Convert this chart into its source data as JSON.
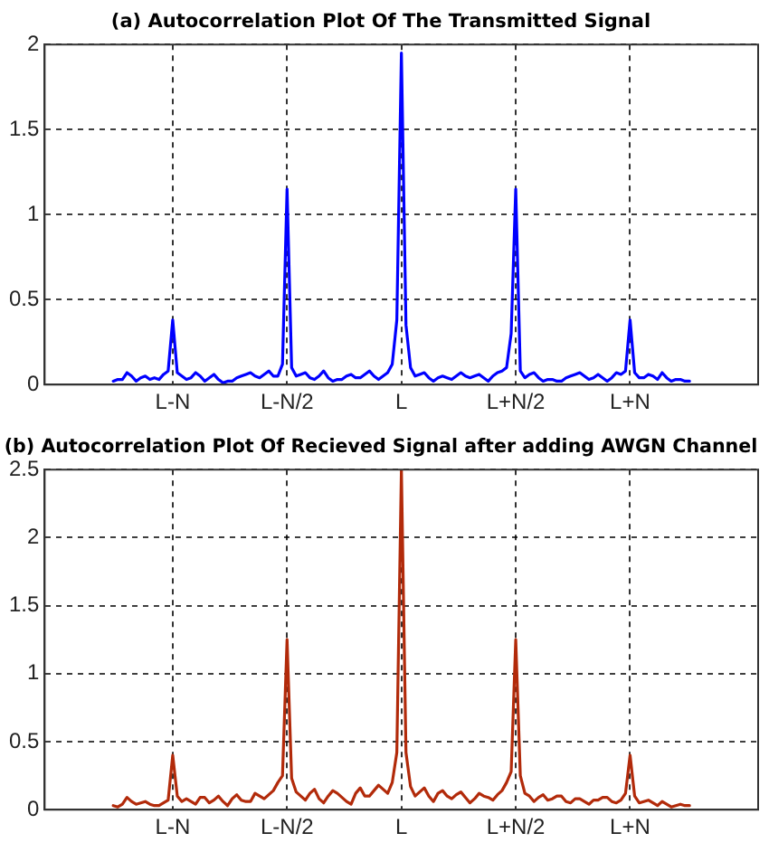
{
  "chart_data": [
    {
      "type": "line",
      "title": "(a) Autocorrelation Plot Of The Transmitted Signal",
      "ylim": [
        0,
        2
      ],
      "yticks": [
        0,
        0.5,
        1,
        1.5,
        2
      ],
      "grid": true,
      "marker": "none",
      "line_style": "solid",
      "categories": [
        null,
        null,
        null,
        null,
        null,
        null,
        null,
        null,
        null,
        null,
        null,
        null,
        null,
        null,
        null,
        null,
        null,
        null,
        null,
        null,
        null,
        null,
        null,
        null,
        null,
        null,
        null,
        null,
        "L-N",
        null,
        null,
        null,
        null,
        null,
        null,
        null,
        null,
        null,
        null,
        null,
        null,
        null,
        null,
        null,
        null,
        null,
        null,
        null,
        null,
        null,
        null,
        null,
        null,
        "L-N/2",
        null,
        null,
        null,
        null,
        null,
        null,
        null,
        null,
        null,
        null,
        null,
        null,
        null,
        null,
        null,
        null,
        null,
        null,
        null,
        null,
        null,
        null,
        null,
        null,
        "L",
        null,
        null,
        null,
        null,
        null,
        null,
        null,
        null,
        null,
        null,
        null,
        null,
        null,
        null,
        null,
        null,
        null,
        null,
        null,
        null,
        null,
        null,
        null,
        null,
        "L+N/2",
        null,
        null,
        null,
        null,
        null,
        null,
        null,
        null,
        null,
        null,
        null,
        null,
        null,
        null,
        null,
        null,
        null,
        null,
        null,
        null,
        null,
        null,
        null,
        null,
        "L+N",
        null,
        null,
        null,
        null,
        null,
        null,
        null,
        null,
        null,
        null,
        null,
        null,
        null,
        null,
        null,
        null,
        null,
        null,
        null,
        null,
        null,
        null,
        null,
        null,
        null,
        null,
        null,
        null
      ],
      "series": [
        {
          "color": "#0000ff",
          "values": [
            null,
            null,
            null,
            null,
            null,
            null,
            null,
            null,
            null,
            null,
            null,
            null,
            null,
            null,
            null,
            0.02,
            0.03,
            0.03,
            0.07,
            0.05,
            0.02,
            0.04,
            0.05,
            0.03,
            0.04,
            0.03,
            0.06,
            0.08,
            0.38,
            0.07,
            0.05,
            0.03,
            0.04,
            0.07,
            0.05,
            0.02,
            0.04,
            0.06,
            0.03,
            0.01,
            0.02,
            0.02,
            0.04,
            0.05,
            0.06,
            0.07,
            0.05,
            0.04,
            0.06,
            0.08,
            0.05,
            0.05,
            0.12,
            1.15,
            0.1,
            0.05,
            0.06,
            0.07,
            0.04,
            0.03,
            0.05,
            0.08,
            0.04,
            0.02,
            0.03,
            0.03,
            0.05,
            0.06,
            0.04,
            0.04,
            0.06,
            0.08,
            0.05,
            0.03,
            0.05,
            0.07,
            0.12,
            0.38,
            1.95,
            0.35,
            0.1,
            0.05,
            0.06,
            0.07,
            0.04,
            0.02,
            0.04,
            0.05,
            0.04,
            0.03,
            0.05,
            0.07,
            0.05,
            0.04,
            0.05,
            0.06,
            0.04,
            0.02,
            0.05,
            0.07,
            0.08,
            0.1,
            0.3,
            1.15,
            0.08,
            0.04,
            0.06,
            0.07,
            0.04,
            0.02,
            0.03,
            0.03,
            0.02,
            0.02,
            0.04,
            0.05,
            0.06,
            0.07,
            0.05,
            0.03,
            0.04,
            0.06,
            0.04,
            0.02,
            0.04,
            0.07,
            0.06,
            0.08,
            0.38,
            0.07,
            0.04,
            0.04,
            0.06,
            0.05,
            0.03,
            0.07,
            0.04,
            0.02,
            0.03,
            0.03,
            0.02,
            0.02,
            null,
            null,
            null,
            null,
            null,
            null,
            null,
            null,
            null,
            null,
            null,
            null,
            null,
            null,
            null
          ]
        }
      ]
    },
    {
      "type": "line",
      "title": "(b) Autocorrelation Plot Of Recieved Signal after adding AWGN Channel",
      "ylim": [
        0,
        2.5
      ],
      "yticks": [
        0,
        0.5,
        1,
        1.5,
        2,
        2.5
      ],
      "grid": true,
      "marker": "none",
      "line_style": "solid",
      "categories": [
        null,
        null,
        null,
        null,
        null,
        null,
        null,
        null,
        null,
        null,
        null,
        null,
        null,
        null,
        null,
        null,
        null,
        null,
        null,
        null,
        null,
        null,
        null,
        null,
        null,
        null,
        null,
        null,
        "L-N",
        null,
        null,
        null,
        null,
        null,
        null,
        null,
        null,
        null,
        null,
        null,
        null,
        null,
        null,
        null,
        null,
        null,
        null,
        null,
        null,
        null,
        null,
        null,
        null,
        "L-N/2",
        null,
        null,
        null,
        null,
        null,
        null,
        null,
        null,
        null,
        null,
        null,
        null,
        null,
        null,
        null,
        null,
        null,
        null,
        null,
        null,
        null,
        null,
        null,
        null,
        "L",
        null,
        null,
        null,
        null,
        null,
        null,
        null,
        null,
        null,
        null,
        null,
        null,
        null,
        null,
        null,
        null,
        null,
        null,
        null,
        null,
        null,
        null,
        null,
        null,
        "L+N/2",
        null,
        null,
        null,
        null,
        null,
        null,
        null,
        null,
        null,
        null,
        null,
        null,
        null,
        null,
        null,
        null,
        null,
        null,
        null,
        null,
        null,
        null,
        null,
        null,
        "L+N",
        null,
        null,
        null,
        null,
        null,
        null,
        null,
        null,
        null,
        null,
        null,
        null,
        null,
        null,
        null,
        null,
        null,
        null,
        null,
        null,
        null,
        null,
        null,
        null,
        null,
        null,
        null,
        null
      ],
      "series": [
        {
          "color": "#b22a0a",
          "values": [
            null,
            null,
            null,
            null,
            null,
            null,
            null,
            null,
            null,
            null,
            null,
            null,
            null,
            null,
            null,
            0.03,
            0.02,
            0.04,
            0.09,
            0.06,
            0.04,
            0.05,
            0.06,
            0.04,
            0.03,
            0.03,
            0.05,
            0.07,
            0.4,
            0.1,
            0.06,
            0.08,
            0.06,
            0.04,
            0.09,
            0.09,
            0.05,
            0.07,
            0.1,
            0.06,
            0.03,
            0.08,
            0.11,
            0.07,
            0.06,
            0.06,
            0.12,
            0.1,
            0.08,
            0.11,
            0.14,
            0.2,
            0.25,
            1.25,
            0.23,
            0.13,
            0.1,
            0.07,
            0.12,
            0.15,
            0.08,
            0.05,
            0.1,
            0.14,
            0.12,
            0.09,
            0.06,
            0.04,
            0.12,
            0.16,
            0.1,
            0.1,
            0.14,
            0.18,
            0.15,
            0.12,
            0.2,
            0.42,
            2.5,
            0.42,
            0.17,
            0.1,
            0.13,
            0.16,
            0.1,
            0.06,
            0.12,
            0.14,
            0.1,
            0.08,
            0.11,
            0.13,
            0.09,
            0.05,
            0.08,
            0.12,
            0.1,
            0.09,
            0.07,
            0.11,
            0.14,
            0.2,
            0.28,
            1.25,
            0.25,
            0.12,
            0.1,
            0.06,
            0.09,
            0.11,
            0.07,
            0.08,
            0.1,
            0.1,
            0.06,
            0.05,
            0.08,
            0.08,
            0.06,
            0.04,
            0.07,
            0.07,
            0.09,
            0.09,
            0.06,
            0.05,
            0.07,
            0.12,
            0.4,
            0.1,
            0.05,
            0.06,
            0.07,
            0.05,
            0.03,
            0.06,
            0.04,
            0.02,
            0.03,
            0.04,
            0.03,
            0.03,
            null,
            null,
            null,
            null,
            null,
            null,
            null,
            null,
            null,
            null,
            null,
            null,
            null,
            null,
            null
          ]
        }
      ]
    }
  ]
}
